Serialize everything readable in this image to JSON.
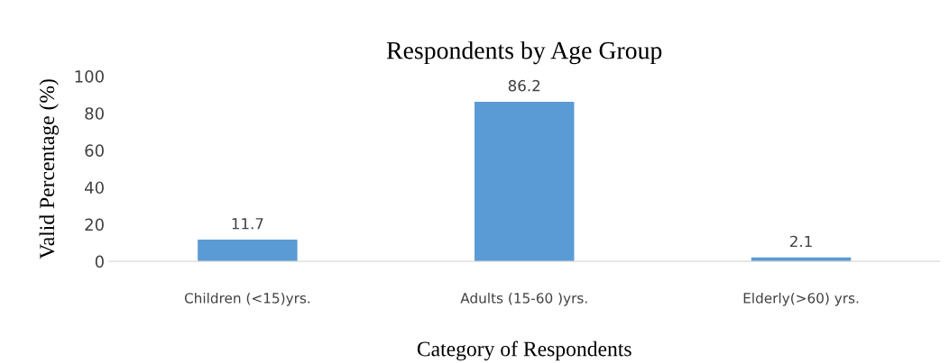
{
  "chart_data": {
    "type": "bar",
    "title": "Respondents by Age Group",
    "xlabel": "Category of Respondents",
    "ylabel": "Valid Percentage (%)",
    "categories": [
      "Children (<15)yrs.",
      "Adults (15-60 )yrs.",
      "Elderly(>60) yrs."
    ],
    "values": [
      11.7,
      86.2,
      2.1
    ],
    "color": "#5b9bd5",
    "ylim": [
      0,
      100
    ],
    "yticks": [
      0,
      20,
      40,
      60,
      80,
      100
    ],
    "data_labels": true,
    "grid": false,
    "legend": false
  }
}
